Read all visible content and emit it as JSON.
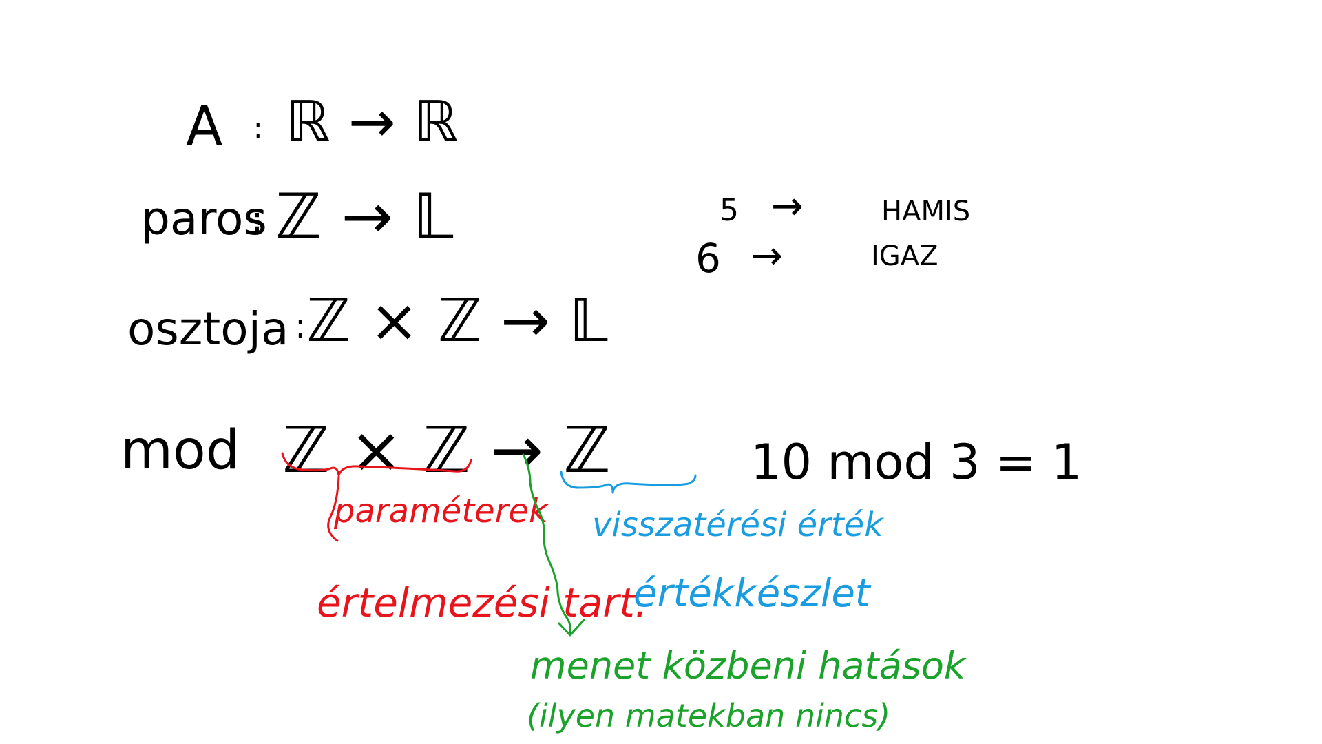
{
  "board": {
    "lines": {
      "line1": {
        "name": "A",
        "sep": ":",
        "sig": "ℝ → ℝ"
      },
      "line2": {
        "name": "paros",
        "sep": ":",
        "sig": "ℤ → 𝕃"
      },
      "line3": {
        "name": "osztoja",
        "sep": ":",
        "sig": "ℤ × ℤ → 𝕃"
      },
      "line4": {
        "name": "mod",
        "sig": "ℤ × ℤ → ℤ"
      }
    },
    "examples": {
      "ex1": {
        "input": "5",
        "arrow": "→",
        "output": "HAMIS"
      },
      "ex2": {
        "input": "6",
        "arrow": "→",
        "output": "IGAZ"
      },
      "mod_example": "10 mod 3 = 1"
    },
    "annotations": {
      "params": "paraméterek",
      "domain": "értelmezési tart.",
      "return": "visszatérési érték",
      "range": "értékkészlet",
      "side_effects": "menet közbeni hatások",
      "side_note": "(ilyen matekban nincs)"
    },
    "colors": {
      "black": "#000000",
      "red": "#e8141b",
      "blue": "#1a9de0",
      "green": "#1aa22a"
    }
  }
}
